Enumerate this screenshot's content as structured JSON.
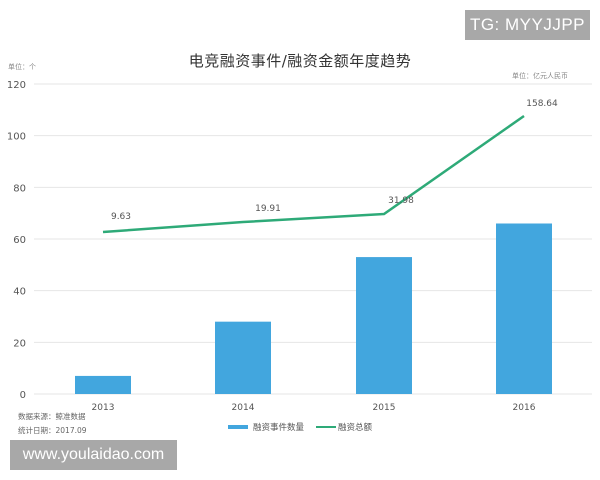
{
  "header": {
    "title": "电竞融资事件/融资金额年度趋势",
    "unit_left": "单位：个",
    "unit_right": "单位：亿元人民币"
  },
  "watermarks": {
    "top_right": "TG: MYYJJPP",
    "bottom_left": "www.youlaidao.com"
  },
  "footer": {
    "source": "数据来源：鲸准数据",
    "date": "统计日期：2017.09"
  },
  "legend": {
    "bar_label": "融资事件数量",
    "line_label": "融资总额"
  },
  "colors": {
    "bar": "#42a6de",
    "line": "#2eaa78",
    "grid": "#e6e6e6"
  },
  "chart_data": {
    "type": "bar",
    "title": "电竞融资事件/融资金额年度趋势",
    "categories": [
      "2013",
      "2014",
      "2015",
      "2016"
    ],
    "series": [
      {
        "name": "融资事件数量",
        "type": "bar",
        "unit": "个",
        "values": [
          7,
          28,
          53,
          66
        ]
      },
      {
        "name": "融资总额",
        "type": "line",
        "unit": "亿元人民币",
        "values": [
          9.63,
          19.91,
          31.98,
          158.64
        ],
        "data_labels": [
          "9.63",
          "19.91",
          "31.98",
          "158.64"
        ]
      }
    ],
    "xlabel": "",
    "ylabel": "单位：个",
    "y2label": "单位：亿元人民币",
    "ylim": [
      0,
      120
    ],
    "yticks": [
      0,
      20,
      40,
      60,
      80,
      100,
      120
    ],
    "grid": true,
    "legend_position": "bottom"
  }
}
